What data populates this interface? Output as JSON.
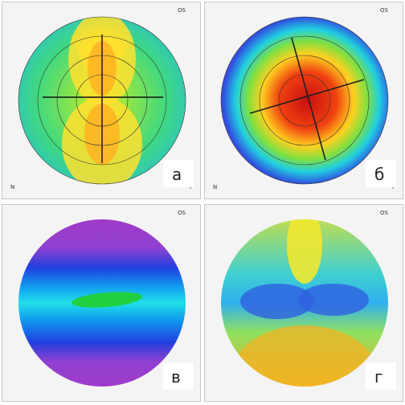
{
  "panels": [
    {
      "label": "а",
      "eye": "OS",
      "nasal": "N",
      "temporal": "T"
    },
    {
      "label": "б",
      "eye": "OS",
      "nasal": "N",
      "temporal": "T"
    },
    {
      "label": "в",
      "eye": "OS"
    },
    {
      "label": "г",
      "eye": "OS"
    }
  ]
}
